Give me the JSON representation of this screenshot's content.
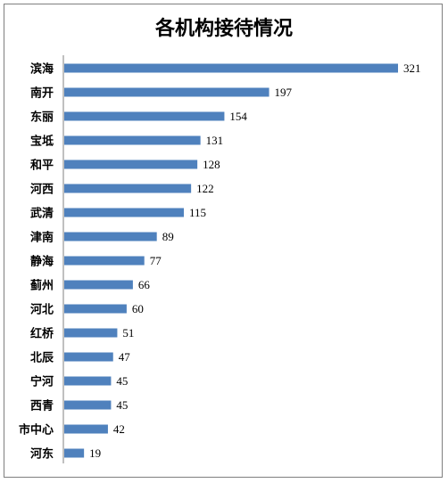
{
  "chart_data": {
    "type": "bar",
    "orientation": "horizontal",
    "title": "各机构接待情况",
    "categories": [
      "滨海",
      "南开",
      "东丽",
      "宝坻",
      "和平",
      "河西",
      "武清",
      "津南",
      "静海",
      "蓟州",
      "河北",
      "红桥",
      "北辰",
      "宁河",
      "西青",
      "市中心",
      "河东"
    ],
    "values": [
      321,
      197,
      154,
      131,
      128,
      122,
      115,
      89,
      77,
      66,
      60,
      51,
      47,
      45,
      45,
      42,
      19
    ],
    "xlim": [
      0,
      321
    ],
    "grid": false,
    "legend": "none",
    "bar_color": "#4f81bd"
  }
}
